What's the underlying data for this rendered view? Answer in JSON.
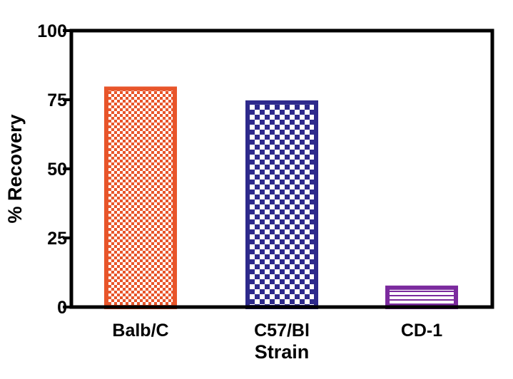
{
  "chart_data": {
    "type": "bar",
    "title": "",
    "xlabel": "Strain",
    "ylabel": "% Recovery",
    "categories": [
      "Balb/C",
      "C57/Bl",
      "CD-1"
    ],
    "values": [
      79,
      74,
      7
    ],
    "ylim": [
      0,
      100
    ],
    "yticks": [
      "0",
      "25",
      "50",
      "75",
      "100"
    ],
    "grid": false,
    "legend": "none",
    "bar_colors": [
      "#e8552a",
      "#2e2a8c",
      "#7b2a9e"
    ],
    "bar_patterns": [
      "checker-fine",
      "checker-coarse",
      "horizontal-lines"
    ]
  }
}
